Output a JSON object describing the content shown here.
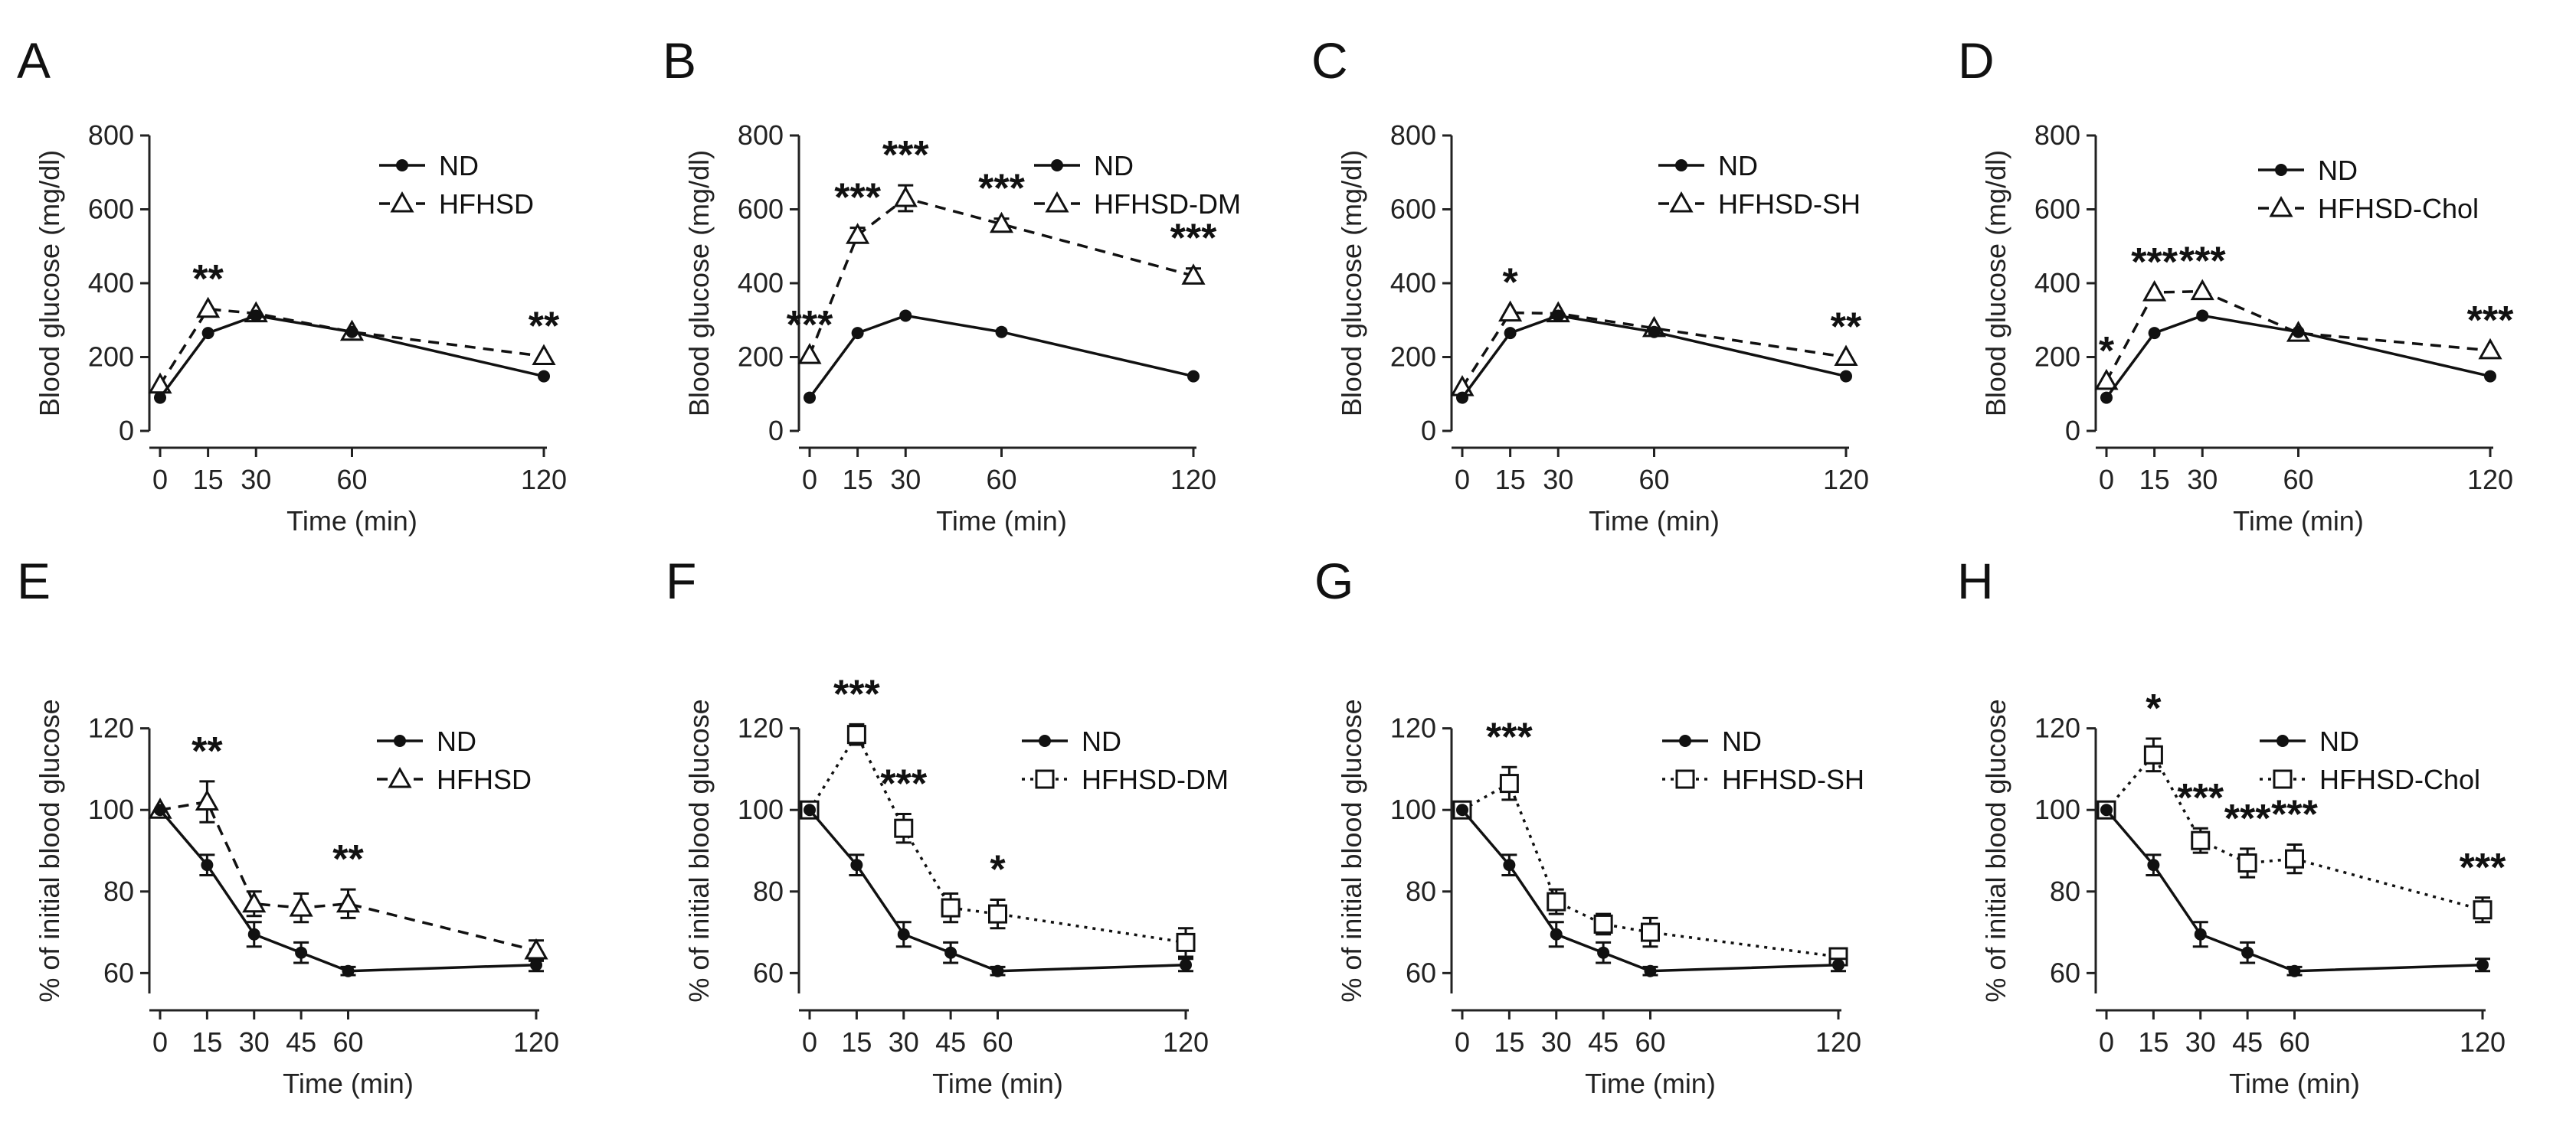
{
  "chart_data": [
    {
      "type": "line",
      "panel": "A",
      "ylabel": "Blood glucose (mg/dl)",
      "xlabel": "Time (min)",
      "ylim": [
        0,
        800
      ],
      "yticks": [
        0,
        200,
        400,
        600,
        800
      ],
      "x": [
        0,
        15,
        30,
        60,
        120
      ],
      "xticks": [
        0,
        15,
        30,
        60,
        120
      ],
      "series": [
        {
          "name": "ND",
          "marker": "dot",
          "style": "solid",
          "values": [
            90,
            265,
            312,
            268,
            148
          ],
          "err": [
            0,
            0,
            0,
            0,
            0
          ]
        },
        {
          "name": "HFHSD",
          "marker": "triangle",
          "style": "dashed",
          "values": [
            125,
            330,
            318,
            268,
            202
          ],
          "err": [
            0,
            0,
            0,
            0,
            0
          ]
        }
      ],
      "annotations": [
        {
          "x": 15,
          "label": "**"
        },
        {
          "x": 120,
          "label": "**"
        }
      ]
    },
    {
      "type": "line",
      "panel": "B",
      "ylabel": "Blood glucose (mg/dl)",
      "xlabel": "Time (min)",
      "ylim": [
        0,
        800
      ],
      "yticks": [
        0,
        200,
        400,
        600,
        800
      ],
      "x": [
        0,
        15,
        30,
        60,
        120
      ],
      "xticks": [
        0,
        15,
        30,
        60,
        120
      ],
      "series": [
        {
          "name": "ND",
          "marker": "dot",
          "style": "solid",
          "values": [
            90,
            265,
            312,
            268,
            148
          ],
          "err": [
            0,
            0,
            0,
            0,
            0
          ]
        },
        {
          "name": "HFHSD-DM",
          "marker": "triangle",
          "style": "dashed",
          "values": [
            205,
            530,
            630,
            560,
            420
          ],
          "err": [
            0,
            20,
            35,
            15,
            20
          ]
        }
      ],
      "annotations": [
        {
          "x": 0,
          "label": "***"
        },
        {
          "x": 15,
          "label": "***"
        },
        {
          "x": 30,
          "label": "***"
        },
        {
          "x": 60,
          "label": "***"
        },
        {
          "x": 120,
          "label": "***"
        }
      ]
    },
    {
      "type": "line",
      "panel": "C",
      "ylabel": "Blood glucose (mg/dl)",
      "xlabel": "Time (min)",
      "ylim": [
        0,
        800
      ],
      "yticks": [
        0,
        200,
        400,
        600,
        800
      ],
      "x": [
        0,
        15,
        30,
        60,
        120
      ],
      "xticks": [
        0,
        15,
        30,
        60,
        120
      ],
      "series": [
        {
          "name": "ND",
          "marker": "dot",
          "style": "solid",
          "values": [
            90,
            265,
            312,
            268,
            148
          ],
          "err": [
            0,
            0,
            0,
            0,
            0
          ]
        },
        {
          "name": "HFHSD-SH",
          "marker": "triangle",
          "style": "dashed",
          "values": [
            118,
            320,
            318,
            278,
            200
          ],
          "err": [
            0,
            0,
            0,
            0,
            0
          ]
        }
      ],
      "annotations": [
        {
          "x": 15,
          "label": "*"
        },
        {
          "x": 120,
          "label": "**"
        }
      ]
    },
    {
      "type": "line",
      "panel": "D",
      "ylabel": "Blood glucose (mg/dl)",
      "xlabel": "Time (min)",
      "ylim": [
        0,
        800
      ],
      "yticks": [
        0,
        200,
        400,
        600,
        800
      ],
      "x": [
        0,
        15,
        30,
        60,
        120
      ],
      "xticks": [
        0,
        15,
        30,
        60,
        120
      ],
      "series": [
        {
          "name": "ND",
          "marker": "dot",
          "style": "solid",
          "values": [
            90,
            265,
            312,
            268,
            148
          ],
          "err": [
            0,
            0,
            0,
            0,
            0
          ]
        },
        {
          "name": "HFHSD-Chol",
          "marker": "triangle",
          "style": "dashed",
          "values": [
            135,
            375,
            378,
            265,
            218
          ],
          "err": [
            0,
            0,
            0,
            0,
            0
          ]
        }
      ],
      "annotations": [
        {
          "x": 0,
          "label": "*"
        },
        {
          "x": 15,
          "label": "***"
        },
        {
          "x": 30,
          "label": "***"
        },
        {
          "x": 120,
          "label": "***"
        }
      ]
    },
    {
      "type": "line",
      "panel": "E",
      "ylabel": "% of initial blood glucose",
      "xlabel": "Time (min)",
      "ylim": [
        55,
        125
      ],
      "yticks": [
        60,
        80,
        100,
        120
      ],
      "x": [
        0,
        15,
        30,
        45,
        60,
        120
      ],
      "xticks": [
        0,
        15,
        30,
        45,
        60,
        120
      ],
      "series": [
        {
          "name": "ND",
          "marker": "dot",
          "style": "solid",
          "values": [
            100,
            86.5,
            69.5,
            65,
            60.5,
            62
          ],
          "err": [
            0,
            2.5,
            3,
            2.5,
            1,
            1.5
          ]
        },
        {
          "name": "HFHSD",
          "marker": "triangle",
          "style": "dashed",
          "values": [
            100,
            102,
            77,
            76,
            77,
            65.5
          ],
          "err": [
            0,
            5,
            3,
            3.5,
            3.5,
            2.5
          ]
        }
      ],
      "annotations": [
        {
          "x": 15,
          "label": "**"
        },
        {
          "x": 60,
          "label": "**"
        }
      ]
    },
    {
      "type": "line",
      "panel": "F",
      "ylabel": "% of initial blood glucose",
      "xlabel": "Time (min)",
      "ylim": [
        55,
        125
      ],
      "yticks": [
        60,
        80,
        100,
        120
      ],
      "x": [
        0,
        15,
        30,
        45,
        60,
        120
      ],
      "xticks": [
        0,
        15,
        30,
        45,
        60,
        120
      ],
      "series": [
        {
          "name": "ND",
          "marker": "dot",
          "style": "solid",
          "values": [
            100,
            86.5,
            69.5,
            65,
            60.5,
            62
          ],
          "err": [
            0,
            2.5,
            3,
            2.5,
            1,
            1.5
          ]
        },
        {
          "name": "HFHSD-DM",
          "marker": "square",
          "style": "dotted",
          "values": [
            100,
            118.5,
            95.5,
            76,
            74.5,
            67.5
          ],
          "err": [
            0,
            2.5,
            3.5,
            3.5,
            3.5,
            3.5
          ]
        }
      ],
      "annotations": [
        {
          "x": 15,
          "label": "***"
        },
        {
          "x": 30,
          "label": "***"
        },
        {
          "x": 60,
          "label": "*"
        }
      ]
    },
    {
      "type": "line",
      "panel": "G",
      "ylabel": "% of initial blood glucose",
      "xlabel": "Time (min)",
      "ylim": [
        55,
        125
      ],
      "yticks": [
        60,
        80,
        100,
        120
      ],
      "x": [
        0,
        15,
        30,
        45,
        60,
        120
      ],
      "xticks": [
        0,
        15,
        30,
        45,
        60,
        120
      ],
      "series": [
        {
          "name": "ND",
          "marker": "dot",
          "style": "solid",
          "values": [
            100,
            86.5,
            69.5,
            65,
            60.5,
            62
          ],
          "err": [
            0,
            2.5,
            3,
            2.5,
            1,
            1.5
          ]
        },
        {
          "name": "HFHSD-SH",
          "marker": "square",
          "style": "dotted",
          "values": [
            100,
            106.5,
            77.5,
            72,
            70,
            64
          ],
          "err": [
            0,
            4,
            3,
            2.5,
            3.5,
            2
          ]
        }
      ],
      "annotations": [
        {
          "x": 15,
          "label": "***"
        }
      ]
    },
    {
      "type": "line",
      "panel": "H",
      "ylabel": "% of initial blood glucose",
      "xlabel": "Time (min)",
      "ylim": [
        55,
        125
      ],
      "yticks": [
        60,
        80,
        100,
        120
      ],
      "x": [
        0,
        15,
        30,
        45,
        60,
        120
      ],
      "xticks": [
        0,
        15,
        30,
        45,
        60,
        120
      ],
      "series": [
        {
          "name": "ND",
          "marker": "dot",
          "style": "solid",
          "values": [
            100,
            86.5,
            69.5,
            65,
            60.5,
            62
          ],
          "err": [
            0,
            2.5,
            3,
            2.5,
            1,
            1.5
          ]
        },
        {
          "name": "HFHSD-Chol",
          "marker": "square",
          "style": "dotted",
          "values": [
            100,
            113.5,
            92.5,
            87,
            88,
            75.5
          ],
          "err": [
            0,
            4,
            3,
            3.5,
            3.5,
            3
          ]
        }
      ],
      "annotations": [
        {
          "x": 15,
          "label": "*"
        },
        {
          "x": 30,
          "label": "***"
        },
        {
          "x": 45,
          "label": "***"
        },
        {
          "x": 60,
          "label": "***"
        },
        {
          "x": 120,
          "label": "***"
        }
      ]
    }
  ]
}
